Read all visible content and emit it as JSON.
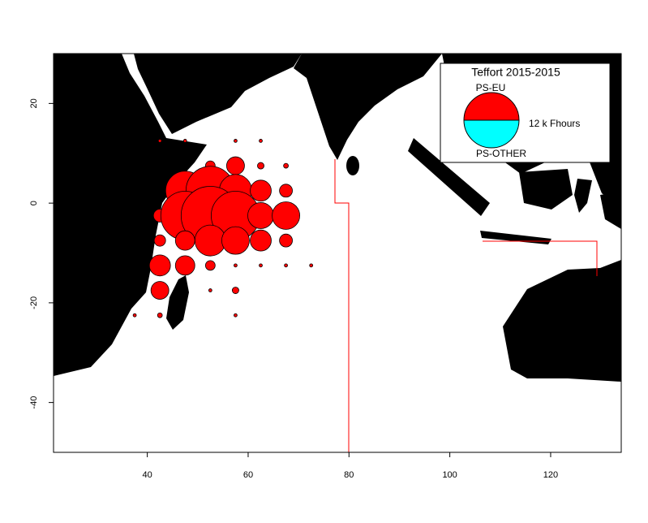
{
  "chart_data": {
    "type": "bubble-map",
    "xlim": [
      21.4,
      134
    ],
    "ylim": [
      -50,
      30
    ],
    "xticks": [
      40,
      60,
      80,
      100,
      120
    ],
    "yticks": [
      -40,
      -20,
      0,
      20
    ],
    "legend": {
      "title": "Teffort 2015-2015",
      "series": [
        {
          "name": "PS-EU",
          "color": "#ff0000"
        },
        {
          "name": "PS-OTHER",
          "color": "#00ffff"
        }
      ],
      "size": 12,
      "size_label": "12 k Fhours"
    },
    "points": {
      "lon": [
        52.5,
        57.5,
        62.5,
        67.5,
        42.5,
        47.5,
        57.5,
        62.5,
        47.5,
        52.5,
        57.5,
        62.5,
        67.5,
        42.5,
        47.5,
        52.5,
        57.5,
        62.5,
        67.5,
        42.5,
        47.5,
        52.5,
        57.5,
        62.5,
        67.5,
        42.5,
        47.5,
        52.5,
        57.5,
        62.5,
        67.5,
        72.5,
        42.5,
        52.5,
        57.5,
        37.5,
        42.5,
        57.5
      ],
      "lat": [
        7.5,
        7.5,
        7.5,
        7.5,
        12.5,
        12.5,
        12.5,
        12.5,
        2.5,
        2.5,
        2.5,
        2.5,
        2.5,
        -2.5,
        -2.5,
        -2.5,
        -2.5,
        -2.5,
        -2.5,
        -7.5,
        -7.5,
        -7.5,
        -7.5,
        -7.5,
        -7.5,
        -12.5,
        -12.5,
        -12.5,
        -12.5,
        -12.5,
        -12.5,
        -12.5,
        -17.5,
        -17.5,
        -17.5,
        -22.5,
        -22.5,
        -22.5
      ],
      "values": [
        0.37,
        1.26,
        0.17,
        0.09,
        0.04,
        0.04,
        0.04,
        0.04,
        5.98,
        9.34,
        4.15,
        1.75,
        0.66,
        0.66,
        9.34,
        13.45,
        9.34,
        2.66,
        3.0,
        0.51,
        1.49,
        3.75,
        3.0,
        1.75,
        0.66,
        1.75,
        1.49,
        0.37,
        0.04,
        0.04,
        0.04,
        0.04,
        1.26,
        0.04,
        0.17,
        0.04,
        0.09,
        0.04
      ]
    }
  }
}
